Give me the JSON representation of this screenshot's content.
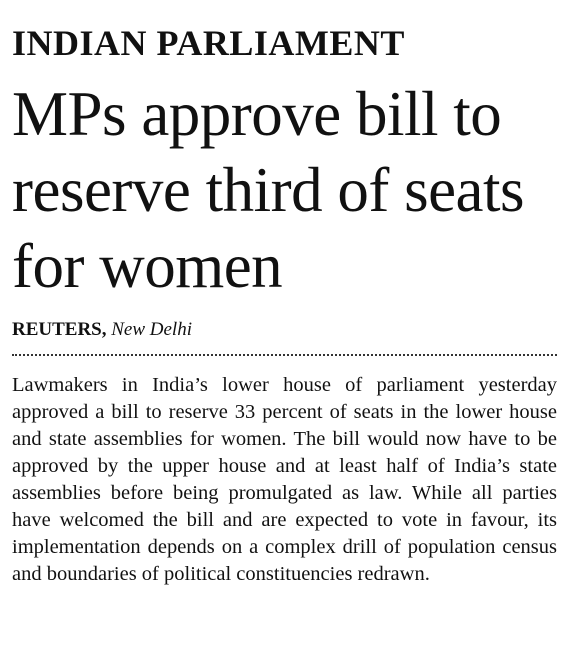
{
  "article": {
    "kicker": "INDIAN PARLIAMENT",
    "headline": "MPs approve bill to reserve third of seats for women",
    "byline": {
      "agency": "REUTERS,",
      "location": "New Delhi"
    },
    "body": "Lawmakers in India’s lower house of parliament yesterday approved a bill to reserve 33 percent of seats in the lower house and state assemblies for women. The bill would now have to be approved by the upper house and at least half of India’s state assemblies before being promulgated as law. While all parties have welcomed the bill and are expected to vote in favour, its implementation depends on a complex drill of population census and boundaries of political constituencies redrawn."
  }
}
